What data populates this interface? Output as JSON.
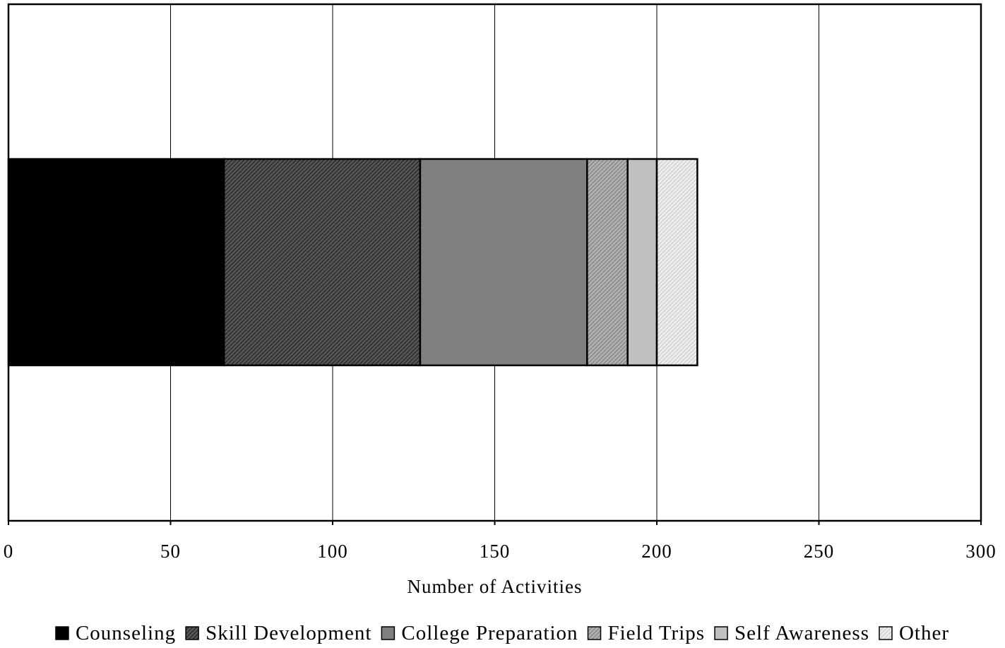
{
  "chart_data": {
    "type": "bar",
    "orientation": "horizontal",
    "stacked": true,
    "title": "",
    "xlabel": "Number of Activities",
    "ylabel": "",
    "xlim": [
      0,
      300
    ],
    "x_ticks": [
      "0",
      "50",
      "100",
      "150",
      "200",
      "250",
      "300"
    ],
    "grid": "vertical",
    "legend_position": "bottom",
    "categories": [
      ""
    ],
    "series": [
      {
        "name": "Counseling",
        "values": [
          66.5
        ],
        "color": "#000000",
        "pattern": "solid"
      },
      {
        "name": "Skill Development",
        "values": [
          60.5
        ],
        "color": "#4a4a4a",
        "pattern": "dense-diagonal-hatch"
      },
      {
        "name": "College Preparation",
        "values": [
          51.5
        ],
        "color": "#808080",
        "pattern": "solid"
      },
      {
        "name": "Field Trips",
        "values": [
          12.5
        ],
        "color": "#9c9c9c",
        "pattern": "diagonal-hatch"
      },
      {
        "name": "Self Awareness",
        "values": [
          9
        ],
        "color": "#c0c0c0",
        "pattern": "solid"
      },
      {
        "name": "Other",
        "values": [
          12.5
        ],
        "color": "#dcdcdc",
        "pattern": "light-diagonal-hatch"
      }
    ]
  }
}
